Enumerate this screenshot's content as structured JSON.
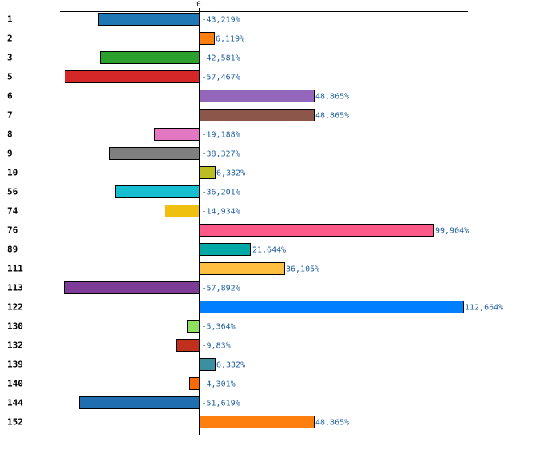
{
  "chart_data": {
    "type": "bar",
    "orientation": "horizontal",
    "title": "",
    "xlabel": "",
    "ylabel": "",
    "zero_tick_label": "0",
    "value_suffix": "%",
    "xlim": [
      -65,
      130
    ],
    "grid": false,
    "legend": "none",
    "categories": [
      "1",
      "2",
      "3",
      "5",
      "6",
      "7",
      "8",
      "9",
      "10",
      "56",
      "74",
      "76",
      "89",
      "111",
      "113",
      "122",
      "130",
      "132",
      "139",
      "140",
      "144",
      "152"
    ],
    "values": [
      -43.219,
      6.119,
      -42.581,
      -57.467,
      48.865,
      48.865,
      -19.188,
      -38.327,
      6.332,
      -36.201,
      -14.934,
      99.904,
      21.644,
      36.105,
      -57.892,
      112.664,
      -5.364,
      -9.83,
      6.332,
      -4.301,
      -51.619,
      48.865
    ],
    "value_labels": [
      "-43,219%",
      "6,119%",
      "-42,581%",
      "-57,467%",
      "48,865%",
      "48,865%",
      "-19,188%",
      "-38,327%",
      "6,332%",
      "-36,201%",
      "-14,934%",
      "99,904%",
      "21,644%",
      "36,105%",
      "-57,892%",
      "112,664%",
      "-5,364%",
      "-9,83%",
      "6,332%",
      "-4,301%",
      "-51,619%",
      "48,865%"
    ],
    "colors": [
      "#1f77b4",
      "#ff7f0e",
      "#2ca02c",
      "#d62728",
      "#9467bd",
      "#8c564b",
      "#e377c2",
      "#7f7f7f",
      "#bcbd22",
      "#17becf",
      "#f0c010",
      "#ff5a8a",
      "#00a9a5",
      "#ffbf40",
      "#7d3c98",
      "#0080ff",
      "#90e060",
      "#c0301c",
      "#3c8fa0",
      "#ff6a00",
      "#1f6fb0",
      "#ff7f0e"
    ]
  }
}
